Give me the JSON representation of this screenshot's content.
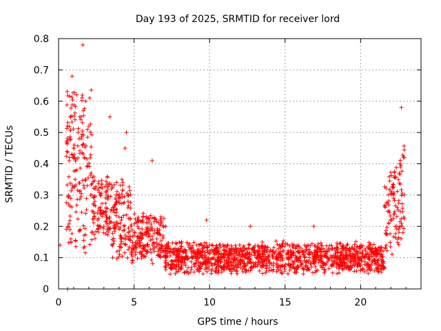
{
  "chart_data": {
    "type": "scatter",
    "title": "Day 193 of 2025, SRMTID for receiver lord",
    "xlabel": "GPS time / hours",
    "ylabel": "SRMTID / TECUs",
    "xlim": [
      0,
      24
    ],
    "ylim": [
      0,
      0.8
    ],
    "x_ticks": [
      0,
      5,
      10,
      15,
      20
    ],
    "x_tick_labels": [
      "0",
      "5",
      "10",
      "15",
      "20"
    ],
    "y_ticks": [
      0,
      0.1,
      0.2,
      0.3,
      0.4,
      0.5,
      0.6,
      0.7,
      0.8
    ],
    "y_tick_labels": [
      "0",
      "0.1",
      "0.2",
      "0.3",
      "0.4",
      "0.5",
      "0.6",
      "0.7",
      "0.8"
    ],
    "grid": true,
    "marker": "+",
    "series": [
      {
        "name": "SRMTID",
        "color": "#ff0000",
        "x": [
          0.1,
          0.6,
          0.7,
          0.8,
          0.9,
          1.0,
          1.1,
          1.2,
          1.4,
          1.5,
          1.6,
          1.7,
          1.8,
          1.9,
          2.0,
          2.2,
          2.4,
          2.6,
          2.8,
          3.0,
          3.2,
          3.4,
          3.6,
          3.8,
          4.0,
          4.2,
          4.4,
          4.5,
          4.6,
          4.8,
          5.0,
          5.3,
          5.6,
          5.9,
          6.2,
          6.5,
          6.8,
          7.1,
          7.4,
          7.7,
          8.0,
          8.3,
          8.6,
          8.9,
          9.2,
          9.5,
          9.8,
          10.0,
          10.3,
          10.6,
          10.9,
          11.2,
          11.5,
          11.8,
          12.1,
          12.4,
          12.7,
          13.0,
          13.3,
          13.6,
          13.9,
          14.2,
          14.5,
          14.8,
          15.1,
          15.4,
          15.7,
          16.0,
          16.3,
          16.6,
          16.9,
          17.2,
          17.5,
          17.8,
          18.1,
          18.4,
          18.7,
          19.0,
          19.3,
          19.6,
          19.9,
          20.2,
          20.5,
          20.8,
          21.1,
          21.4,
          21.7,
          22.0,
          22.2,
          22.4,
          22.5,
          22.6,
          22.7,
          22.8
        ],
        "y": [
          0.14,
          0.0,
          0.41,
          0.55,
          0.68,
          0.45,
          0.35,
          0.38,
          0.55,
          0.48,
          0.78,
          0.42,
          0.6,
          0.33,
          0.52,
          0.3,
          0.28,
          0.22,
          0.25,
          0.2,
          0.3,
          0.55,
          0.26,
          0.2,
          0.23,
          0.35,
          0.45,
          0.5,
          0.28,
          0.2,
          0.17,
          0.16,
          0.14,
          0.12,
          0.41,
          0.16,
          0.14,
          0.2,
          0.12,
          0.11,
          0.12,
          0.1,
          0.05,
          0.12,
          0.11,
          0.1,
          0.22,
          0.14,
          0.12,
          0.1,
          0.11,
          0.08,
          0.13,
          0.12,
          0.09,
          0.1,
          0.2,
          0.08,
          0.13,
          0.11,
          0.09,
          0.12,
          0.1,
          0.05,
          0.11,
          0.1,
          0.13,
          0.09,
          0.14,
          0.11,
          0.2,
          0.1,
          0.08,
          0.12,
          0.09,
          0.07,
          0.08,
          0.1,
          0.06,
          0.09,
          0.08,
          0.1,
          0.05,
          0.12,
          0.09,
          0.11,
          0.14,
          0.22,
          0.3,
          0.2,
          0.35,
          0.4,
          0.58,
          0.18
        ],
        "n_points_approx": 2000
      }
    ]
  }
}
